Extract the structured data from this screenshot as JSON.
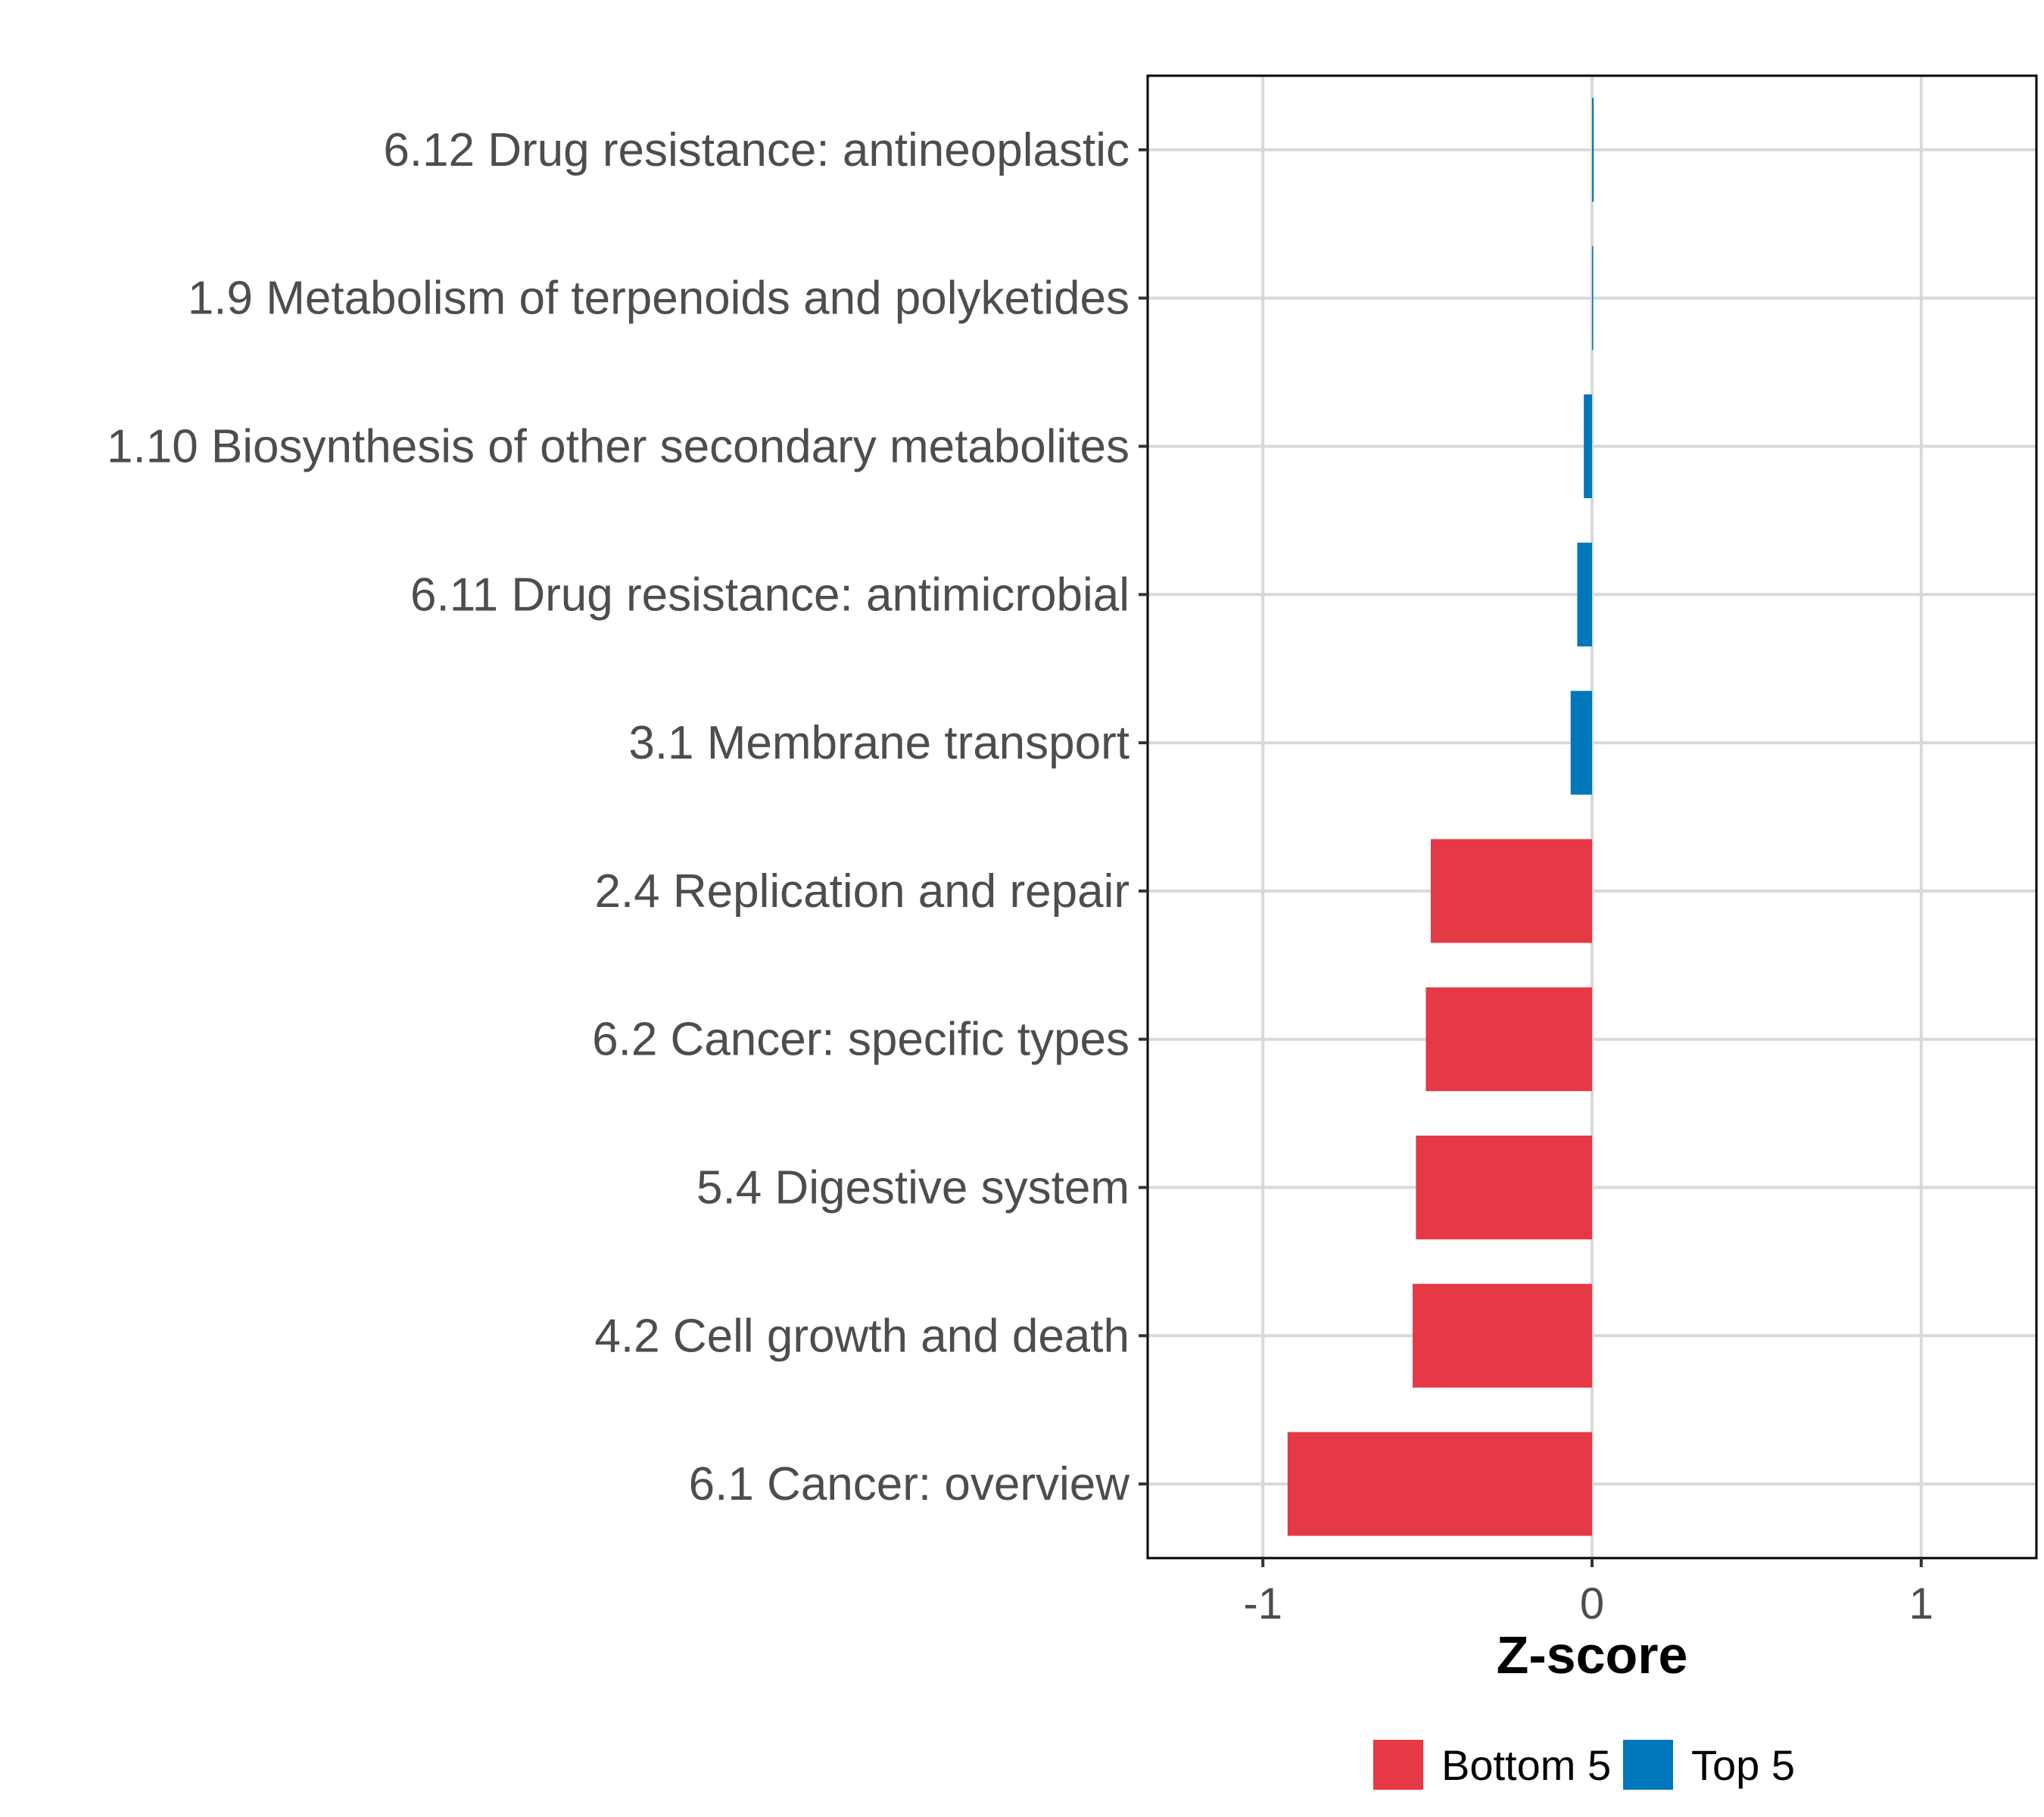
{
  "chart_data": {
    "type": "bar",
    "orientation": "horizontal",
    "categories": [
      "6.12 Drug resistance: antineoplastic",
      "1.9 Metabolism of terpenoids and polyketides",
      "1.10 Biosynthesis of other secondary metabolites",
      "6.11 Drug resistance: antimicrobial",
      "3.1 Membrane transport",
      "2.4 Replication and repair",
      "6.2 Cancer: specific types",
      "5.4 Digestive system",
      "4.2 Cell growth and death",
      "6.1 Cancer: overview"
    ],
    "values": [
      0.005,
      0.002,
      -0.025,
      -0.045,
      -0.065,
      -0.49,
      -0.505,
      -0.535,
      -0.545,
      -0.925
    ],
    "groups": [
      "Top 5",
      "Top 5",
      "Top 5",
      "Top 5",
      "Top 5",
      "Bottom 5",
      "Bottom 5",
      "Bottom 5",
      "Bottom 5",
      "Bottom 5"
    ],
    "xlabel": "Z-score",
    "ylabel": "",
    "xlim": [
      -1.35,
      1.35
    ],
    "xticks": [
      -1,
      0,
      1
    ],
    "xtick_labels": [
      "-1",
      "0",
      "1"
    ],
    "grid": true,
    "legend": {
      "position": "bottom",
      "entries": [
        {
          "label": "Bottom 5",
          "color": "#e63946"
        },
        {
          "label": "Top 5",
          "color": "#0077bb"
        }
      ]
    }
  }
}
